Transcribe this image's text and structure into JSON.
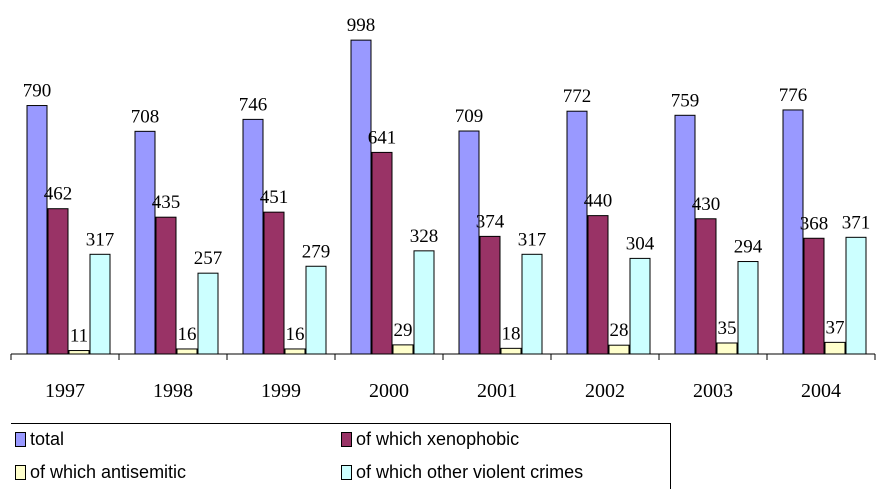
{
  "chart_data": {
    "type": "bar",
    "categories": [
      "1997",
      "1998",
      "1999",
      "2000",
      "2001",
      "2002",
      "2003",
      "2004"
    ],
    "series": [
      {
        "name": "total",
        "color": "#9999ff",
        "values": [
          790,
          708,
          746,
          998,
          709,
          772,
          759,
          776
        ]
      },
      {
        "name": "of which xenophobic",
        "color": "#993366",
        "values": [
          462,
          435,
          451,
          641,
          374,
          440,
          430,
          368
        ]
      },
      {
        "name": "of which antisemitic",
        "color": "#ffffcc",
        "values": [
          11,
          16,
          16,
          29,
          18,
          28,
          35,
          37
        ]
      },
      {
        "name": "of which other violent crimes",
        "color": "#ccffff",
        "values": [
          317,
          257,
          279,
          328,
          317,
          304,
          294,
          371
        ]
      }
    ],
    "title": "",
    "xlabel": "",
    "ylabel": "",
    "ylim": [
      0,
      1000
    ],
    "grid": false,
    "legend_position": "bottom"
  }
}
